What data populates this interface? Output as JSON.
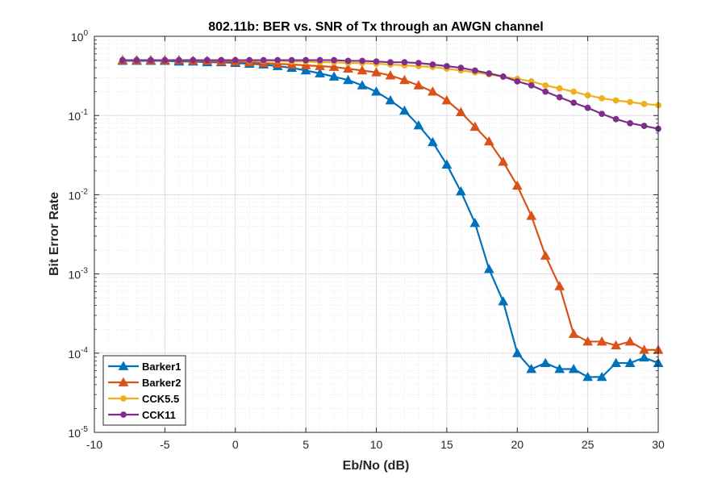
{
  "chart_data": {
    "type": "line",
    "title": "802.11b: BER vs. SNR of Tx through an AWGN channel",
    "xlabel": "Eb/No (dB)",
    "ylabel": "Bit Error Rate",
    "xlim": [
      -10,
      30
    ],
    "ylim": [
      1e-05,
      1
    ],
    "yscale": "log",
    "grid": true,
    "minor_grid": true,
    "legend_position": "bottom-left",
    "x_ticks": [
      "-10",
      "-5",
      "0",
      "5",
      "10",
      "15",
      "20",
      "25",
      "30"
    ],
    "y_tick_bases": [
      "10",
      "10",
      "10",
      "10",
      "10",
      "10"
    ],
    "y_tick_exponents": [
      "0",
      "-1",
      "-2",
      "-3",
      "-4",
      "-5"
    ],
    "x": [
      -8,
      -7,
      -6,
      -5,
      -4,
      -3,
      -2,
      -1,
      0,
      1,
      2,
      3,
      4,
      5,
      6,
      7,
      8,
      9,
      10,
      11,
      12,
      13,
      14,
      15,
      16,
      17,
      18,
      19,
      20,
      21,
      22,
      23,
      24,
      25,
      26,
      27,
      28,
      29,
      30
    ],
    "series": [
      {
        "name": "Barker1",
        "color": "#0072BD",
        "marker": "triangle",
        "values": [
          0.49,
          0.49,
          0.49,
          0.49,
          0.48,
          0.48,
          0.47,
          0.47,
          0.46,
          0.45,
          0.44,
          0.42,
          0.4,
          0.37,
          0.34,
          0.31,
          0.28,
          0.24,
          0.2,
          0.155,
          0.115,
          0.075,
          0.046,
          0.024,
          0.011,
          0.0044,
          0.00115,
          0.00045,
          0.0001,
          6.3e-05,
          7.5e-05,
          6.3e-05,
          6.3e-05,
          5e-05,
          5e-05,
          7.5e-05,
          7.5e-05,
          8.8e-05,
          7.5e-05
        ]
      },
      {
        "name": "Barker2",
        "color": "#D95319",
        "marker": "triangle",
        "values": [
          0.5,
          0.5,
          0.5,
          0.5,
          0.5,
          0.49,
          0.49,
          0.48,
          0.48,
          0.47,
          0.46,
          0.45,
          0.44,
          0.43,
          0.42,
          0.41,
          0.39,
          0.37,
          0.35,
          0.32,
          0.28,
          0.24,
          0.2,
          0.155,
          0.11,
          0.072,
          0.047,
          0.026,
          0.013,
          0.0054,
          0.0017,
          0.0007,
          0.000175,
          0.00014,
          0.00014,
          0.000125,
          0.00014,
          0.00011,
          0.00011
        ]
      },
      {
        "name": "CCK5.5",
        "color": "#EDB120",
        "marker": "circle",
        "values": [
          0.5,
          0.5,
          0.5,
          0.5,
          0.5,
          0.5,
          0.5,
          0.5,
          0.5,
          0.49,
          0.49,
          0.49,
          0.48,
          0.48,
          0.47,
          0.47,
          0.46,
          0.46,
          0.45,
          0.44,
          0.43,
          0.42,
          0.41,
          0.39,
          0.37,
          0.35,
          0.33,
          0.31,
          0.29,
          0.27,
          0.24,
          0.22,
          0.2,
          0.18,
          0.165,
          0.155,
          0.148,
          0.14,
          0.135
        ]
      },
      {
        "name": "CCK11",
        "color": "#7E2F8E",
        "marker": "circle",
        "values": [
          0.5,
          0.5,
          0.5,
          0.5,
          0.5,
          0.5,
          0.5,
          0.5,
          0.5,
          0.5,
          0.5,
          0.5,
          0.5,
          0.5,
          0.5,
          0.5,
          0.49,
          0.49,
          0.48,
          0.47,
          0.47,
          0.46,
          0.44,
          0.42,
          0.4,
          0.37,
          0.34,
          0.31,
          0.27,
          0.24,
          0.2,
          0.17,
          0.145,
          0.125,
          0.105,
          0.09,
          0.08,
          0.074,
          0.068
        ]
      }
    ]
  }
}
